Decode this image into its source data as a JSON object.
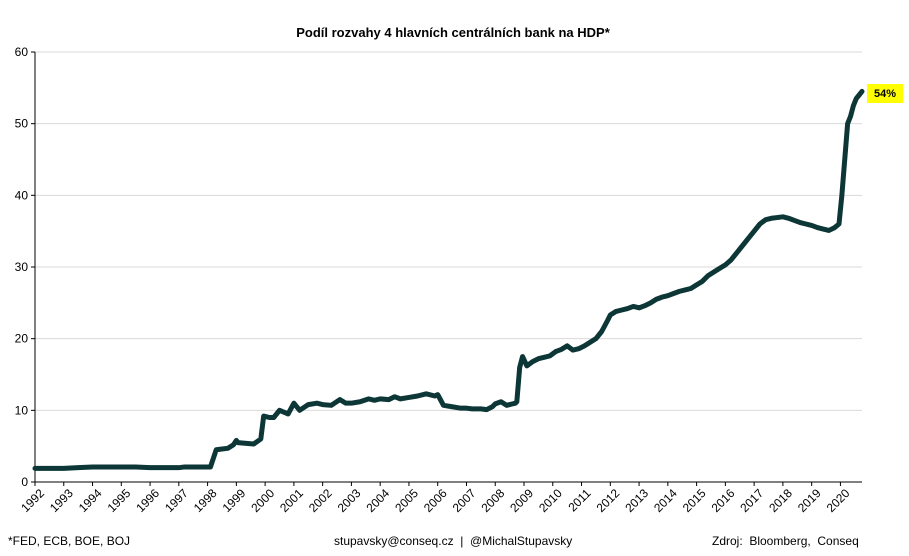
{
  "chart_data": {
    "type": "line",
    "title": "Podíl rozvahy 4 hlavních centrálních bank na HDP*",
    "xlabel": "",
    "ylabel": "",
    "ylim": [
      0,
      60
    ],
    "yticks": [
      0,
      10,
      20,
      30,
      40,
      50,
      60
    ],
    "xlim": [
      1992,
      2020.75
    ],
    "xticks": [
      "1992",
      "1993",
      "1994",
      "1995",
      "1996",
      "1997",
      "1998",
      "1999",
      "2000",
      "2001",
      "2002",
      "2003",
      "2004",
      "2005",
      "2006",
      "2007",
      "2008",
      "2009",
      "2010",
      "2011",
      "2012",
      "2013",
      "2014",
      "2015",
      "2016",
      "2017",
      "2018",
      "2019",
      "2020"
    ],
    "grid": true,
    "line_color": "#0d3636",
    "series": [
      {
        "x": [
          1992.0,
          1992.5,
          1993.0,
          1993.5,
          1994.0,
          1994.5,
          1995.0,
          1995.5,
          1996.0,
          1996.5,
          1997.0,
          1997.2,
          1997.3,
          1997.55,
          1997.7,
          1997.9,
          1998.1,
          1998.3,
          1998.5,
          1998.7,
          1998.9,
          1999.0,
          1999.05,
          1999.3,
          1999.6,
          1999.85,
          1999.95,
          2000.05,
          2000.15,
          2000.25,
          2000.3,
          2000.5,
          2000.8,
          2001.0,
          2001.2,
          2001.5,
          2001.8,
          2002.0,
          2002.3,
          2002.6,
          2002.8,
          2003.0,
          2003.3,
          2003.6,
          2003.8,
          2004.0,
          2004.3,
          2004.5,
          2004.7,
          2005.0,
          2005.3,
          2005.6,
          2005.9,
          2006.0,
          2006.2,
          2006.5,
          2006.8,
          2007.0,
          2007.2,
          2007.5,
          2007.7,
          2007.9,
          2008.0,
          2008.2,
          2008.4,
          2008.6,
          2008.7,
          2008.75,
          2008.85,
          2008.95,
          2009.1,
          2009.3,
          2009.5,
          2009.7,
          2009.9,
          2010.1,
          2010.3,
          2010.5,
          2010.7,
          2010.9,
          2011.1,
          2011.3,
          2011.5,
          2011.7,
          2011.9,
          2012.0,
          2012.2,
          2012.4,
          2012.6,
          2012.8,
          2013.0,
          2013.2,
          2013.4,
          2013.6,
          2013.8,
          2014.0,
          2014.2,
          2014.4,
          2014.6,
          2014.8,
          2015.0,
          2015.2,
          2015.4,
          2015.6,
          2015.8,
          2016.0,
          2016.2,
          2016.4,
          2016.6,
          2016.8,
          2017.0,
          2017.2,
          2017.4,
          2017.6,
          2017.8,
          2018.0,
          2018.2,
          2018.4,
          2018.6,
          2018.8,
          2019.0,
          2019.2,
          2019.4,
          2019.6,
          2019.8,
          2019.95,
          2020.05,
          2020.15,
          2020.25,
          2020.35,
          2020.45,
          2020.55,
          2020.65,
          2020.75
        ],
        "values": [
          1.9,
          1.9,
          1.9,
          2.0,
          2.1,
          2.1,
          2.1,
          2.1,
          2.0,
          2.0,
          2.0,
          2.1,
          2.1,
          2.1,
          2.1,
          2.1,
          2.1,
          4.5,
          4.6,
          4.7,
          5.2,
          5.8,
          5.5,
          5.4,
          5.3,
          6.0,
          9.2,
          9.1,
          9.0,
          9.0,
          9.0,
          10.0,
          9.5,
          11.0,
          10.0,
          10.8,
          11.0,
          10.8,
          10.7,
          11.5,
          11.0,
          11.0,
          11.2,
          11.6,
          11.4,
          11.6,
          11.5,
          11.9,
          11.6,
          11.8,
          12.0,
          12.3,
          12.0,
          12.2,
          10.7,
          10.5,
          10.3,
          10.3,
          10.2,
          10.2,
          10.1,
          10.5,
          10.9,
          11.2,
          10.7,
          10.9,
          11.0,
          11.2,
          16.0,
          17.5,
          16.2,
          16.8,
          17.2,
          17.4,
          17.6,
          18.2,
          18.5,
          19.0,
          18.4,
          18.6,
          19.0,
          19.5,
          20.0,
          21.0,
          22.5,
          23.3,
          23.8,
          24.0,
          24.2,
          24.5,
          24.3,
          24.6,
          25.0,
          25.5,
          25.8,
          26.0,
          26.3,
          26.6,
          26.8,
          27.0,
          27.5,
          28.0,
          28.8,
          29.3,
          29.8,
          30.3,
          31.0,
          32.0,
          33.0,
          34.0,
          35.0,
          36.0,
          36.6,
          36.8,
          36.9,
          37.0,
          36.8,
          36.5,
          36.2,
          36.0,
          35.8,
          35.5,
          35.3,
          35.1,
          35.5,
          36.0,
          40.0,
          45.0,
          50.0,
          51.0,
          52.5,
          53.5,
          54.0,
          54.5
        ]
      }
    ],
    "annotation": {
      "label": "54%",
      "y": 54,
      "bg": "#ffff00"
    }
  },
  "footer": {
    "left": "*FED, ECB, BOE, BOJ",
    "center": "stupavsky@conseq.cz  |  @MichalStupavsky",
    "right": "Zdroj:  Bloomberg,  Conseq"
  }
}
